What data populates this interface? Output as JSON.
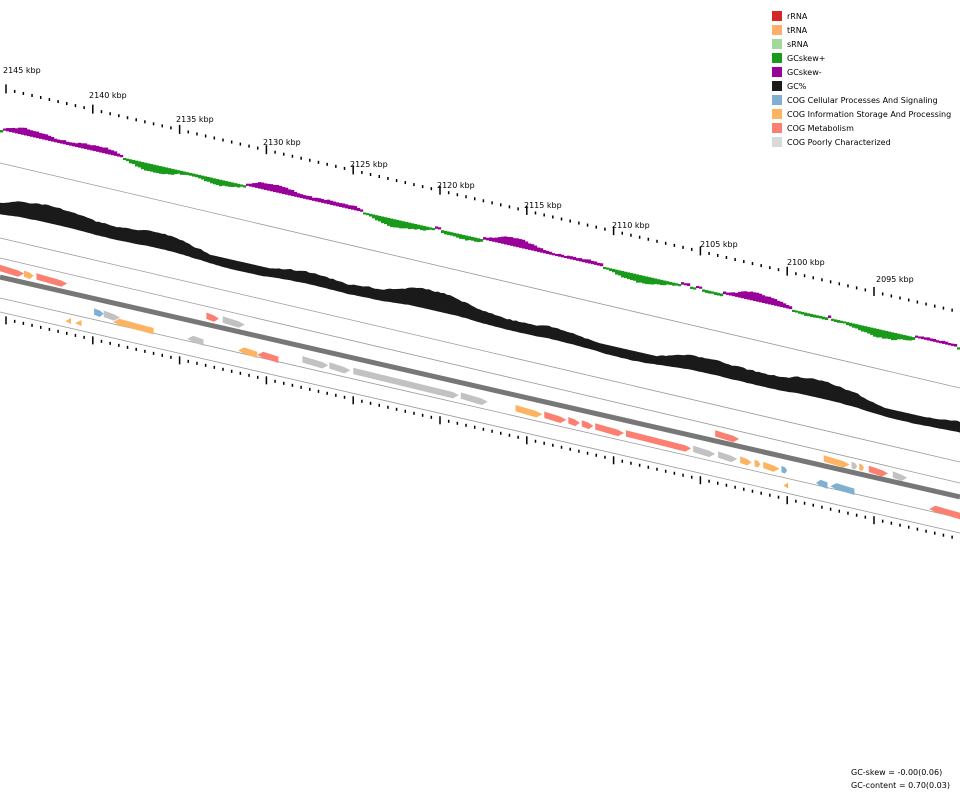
{
  "positions": {
    "labels": [
      "2145 kbp",
      "2140 kbp",
      "2135 kbp",
      "2130 kbp",
      "2125 kbp",
      "2120 kbp",
      "2115 kbp",
      "2110 kbp",
      "2105 kbp",
      "2100 kbp",
      "2095 kbp"
    ]
  },
  "legend": [
    {
      "label": "rRNA",
      "color": "#d62728"
    },
    {
      "label": "tRNA",
      "color": "#fdae6b"
    },
    {
      "label": "sRNA",
      "color": "#a1d99b"
    },
    {
      "label": "GCskew+",
      "color": "#1a9a1a"
    },
    {
      "label": "GCskew-",
      "color": "#990099"
    },
    {
      "label": "GC%",
      "color": "#1a1a1a"
    },
    {
      "label": "COG Cellular Processes And Signaling",
      "color": "#7fb0d4"
    },
    {
      "label": "COG Information Storage And Processing",
      "color": "#fdb462"
    },
    {
      "label": "COG Metabolism",
      "color": "#fb8072"
    },
    {
      "label": "COG Poorly Characterized",
      "color": "#d9d9d9"
    }
  ],
  "stats": {
    "gc_skew": "GC-skew = -0.00(0.06)",
    "gc_content": "GC-content = 0.70(0.03)"
  },
  "genes": {
    "outer": [
      {
        "s": 0.0,
        "e": 0.025,
        "c": "metab"
      },
      {
        "s": 0.025,
        "e": 0.035,
        "c": "info"
      },
      {
        "s": 0.038,
        "e": 0.07,
        "c": "metab"
      },
      {
        "s": 0.215,
        "e": 0.228,
        "c": "metab"
      },
      {
        "s": 0.232,
        "e": 0.255,
        "c": "poor"
      },
      {
        "s": 0.745,
        "e": 0.77,
        "c": "metab"
      },
      {
        "s": 0.858,
        "e": 0.885,
        "c": "info"
      },
      {
        "s": 0.887,
        "e": 0.893,
        "c": "poor"
      },
      {
        "s": 0.895,
        "e": 0.9,
        "c": "info"
      },
      {
        "s": 0.905,
        "e": 0.925,
        "c": "metab"
      },
      {
        "s": 0.93,
        "e": 0.945,
        "c": "poor"
      }
    ],
    "inner": [
      {
        "s": 0.098,
        "e": 0.108,
        "c": "cell"
      },
      {
        "s": 0.108,
        "e": 0.125,
        "c": "poor"
      },
      {
        "s": 0.118,
        "e": 0.16,
        "c": "info",
        "o": 1
      },
      {
        "s": 0.195,
        "e": 0.212,
        "c": "poor",
        "o": 1
      },
      {
        "s": 0.248,
        "e": 0.268,
        "c": "info",
        "o": 1
      },
      {
        "s": 0.268,
        "e": 0.29,
        "c": "metab",
        "o": 1
      },
      {
        "s": 0.315,
        "e": 0.342,
        "c": "poor"
      },
      {
        "s": 0.343,
        "e": 0.365,
        "c": "poor"
      },
      {
        "s": 0.368,
        "e": 0.478,
        "c": "poor"
      },
      {
        "s": 0.48,
        "e": 0.508,
        "c": "poor"
      },
      {
        "s": 0.537,
        "e": 0.565,
        "c": "info"
      },
      {
        "s": 0.567,
        "e": 0.59,
        "c": "metab"
      },
      {
        "s": 0.592,
        "e": 0.604,
        "c": "metab"
      },
      {
        "s": 0.606,
        "e": 0.618,
        "c": "metab"
      },
      {
        "s": 0.62,
        "e": 0.65,
        "c": "metab"
      },
      {
        "s": 0.652,
        "e": 0.72,
        "c": "metab"
      },
      {
        "s": 0.722,
        "e": 0.745,
        "c": "poor"
      },
      {
        "s": 0.748,
        "e": 0.768,
        "c": "poor"
      },
      {
        "s": 0.771,
        "e": 0.783,
        "c": "info"
      },
      {
        "s": 0.786,
        "e": 0.792,
        "c": "info"
      },
      {
        "s": 0.795,
        "e": 0.812,
        "c": "info"
      },
      {
        "s": 0.814,
        "e": 0.82,
        "c": "cell"
      },
      {
        "s": 0.85,
        "e": 0.862,
        "c": "cell",
        "o": 1
      },
      {
        "s": 0.865,
        "e": 0.89,
        "c": "cell",
        "o": 1
      },
      {
        "s": 0.968,
        "e": 1.0,
        "c": "metab",
        "o": 1
      }
    ],
    "small": [
      {
        "s": 0.068,
        "e": 0.074,
        "c": "info"
      },
      {
        "s": 0.078,
        "e": 0.085,
        "c": "info"
      },
      {
        "s": 0.816,
        "e": 0.821,
        "c": "info"
      }
    ]
  }
}
